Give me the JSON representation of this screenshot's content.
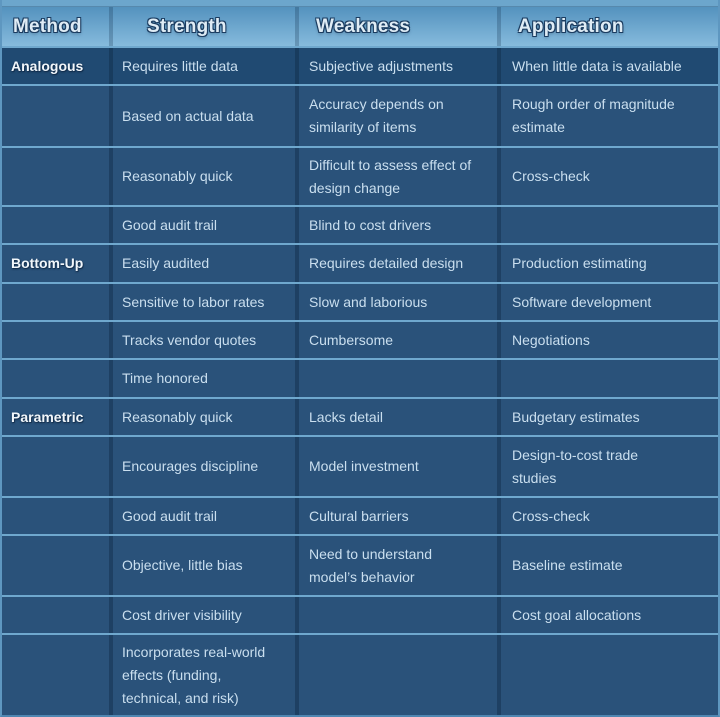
{
  "chart_data": {
    "type": "table",
    "columns": [
      "Method",
      "Strength",
      "Weakness",
      "Application"
    ],
    "sections": [
      "Analogous",
      "Bottom-Up",
      "Parametric"
    ],
    "rows": [
      {
        "method": "Analogous",
        "strength": "Requires little data",
        "weakness": "Subjective adjustments",
        "application": "When little data is available"
      },
      {
        "method": "",
        "strength": "Based on actual data",
        "weakness": "Accuracy depends on\nsimilarity of items",
        "application": "Rough order of magnitude\nestimate"
      },
      {
        "method": "",
        "strength": "Reasonably quick",
        "weakness": "Difficult to assess effect of\ndesign change",
        "application": "Cross-check"
      },
      {
        "method": "",
        "strength": "Good audit trail",
        "weakness": "Blind to cost drivers",
        "application": ""
      },
      {
        "method": "Bottom-Up",
        "strength": "Easily audited",
        "weakness": "Requires detailed design",
        "application": "Production estimating"
      },
      {
        "method": "",
        "strength": "Sensitive to labor rates",
        "weakness": "Slow and laborious",
        "application": "Software development"
      },
      {
        "method": "",
        "strength": "Tracks vendor quotes",
        "weakness": "Cumbersome",
        "application": "Negotiations"
      },
      {
        "method": "",
        "strength": "Time honored",
        "weakness": "",
        "application": ""
      },
      {
        "method": "Parametric",
        "strength": "Reasonably quick",
        "weakness": "Lacks detail",
        "application": "Budgetary estimates"
      },
      {
        "method": "",
        "strength": "Encourages discipline",
        "weakness": "Model investment",
        "application": "Design-to-cost trade\nstudies"
      },
      {
        "method": "",
        "strength": "Good audit trail",
        "weakness": "Cultural barriers",
        "application": "Cross-check"
      },
      {
        "method": "",
        "strength": "Objective, little bias",
        "weakness": "Need to understand\nmodel’s behavior",
        "application": "Baseline estimate"
      },
      {
        "method": "",
        "strength": "Cost driver visibility",
        "weakness": "",
        "application": "Cost goal allocations"
      },
      {
        "method": "",
        "strength": "Incorporates real-world\neffects (funding,\ntechnical, and risk)",
        "weakness": "",
        "application": ""
      }
    ],
    "layout": {
      "legend": "none",
      "grid": "on"
    }
  },
  "colors": {
    "header_gradient_top": "#5492BE",
    "header_gradient_bottom": "#86BBDD",
    "top_strip": "#6CA6CC",
    "body_cell_bg": "#2A527A",
    "first_row_bg": "#204A72",
    "row_separator": "#6FA8CE",
    "column_divider": "#1D4063",
    "header_text": "#DFECF5",
    "header_text_outline": "#1B3C60",
    "body_text": "#CADFEF",
    "method_text": "#F2F7FB",
    "outer_border": "#5E97C0"
  }
}
